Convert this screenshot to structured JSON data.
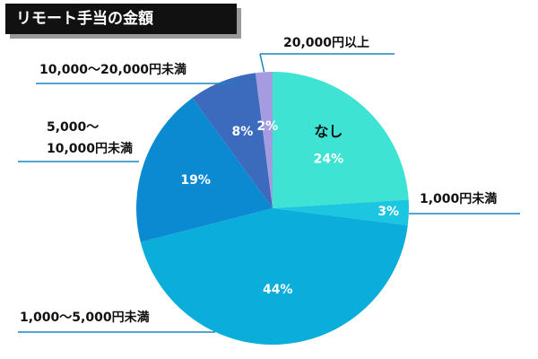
{
  "chart_data": {
    "type": "pie",
    "title": "リモート手当の金額",
    "categories": [
      "なし",
      "1,000円未満",
      "1,000〜5,000円未満",
      "5,000〜\n10,000円未満",
      "10,000〜20,000円未満",
      "20,000円以上"
    ],
    "values": [
      24,
      3,
      44,
      19,
      8,
      2
    ],
    "value_labels": [
      "24%",
      "3%",
      "44%",
      "19%",
      "8%",
      "2%"
    ],
    "colors": [
      "#3ee3d3",
      "#1dc6e0",
      "#0badda",
      "#0b8ad2",
      "#3c6bbd",
      "#a59be0"
    ]
  }
}
